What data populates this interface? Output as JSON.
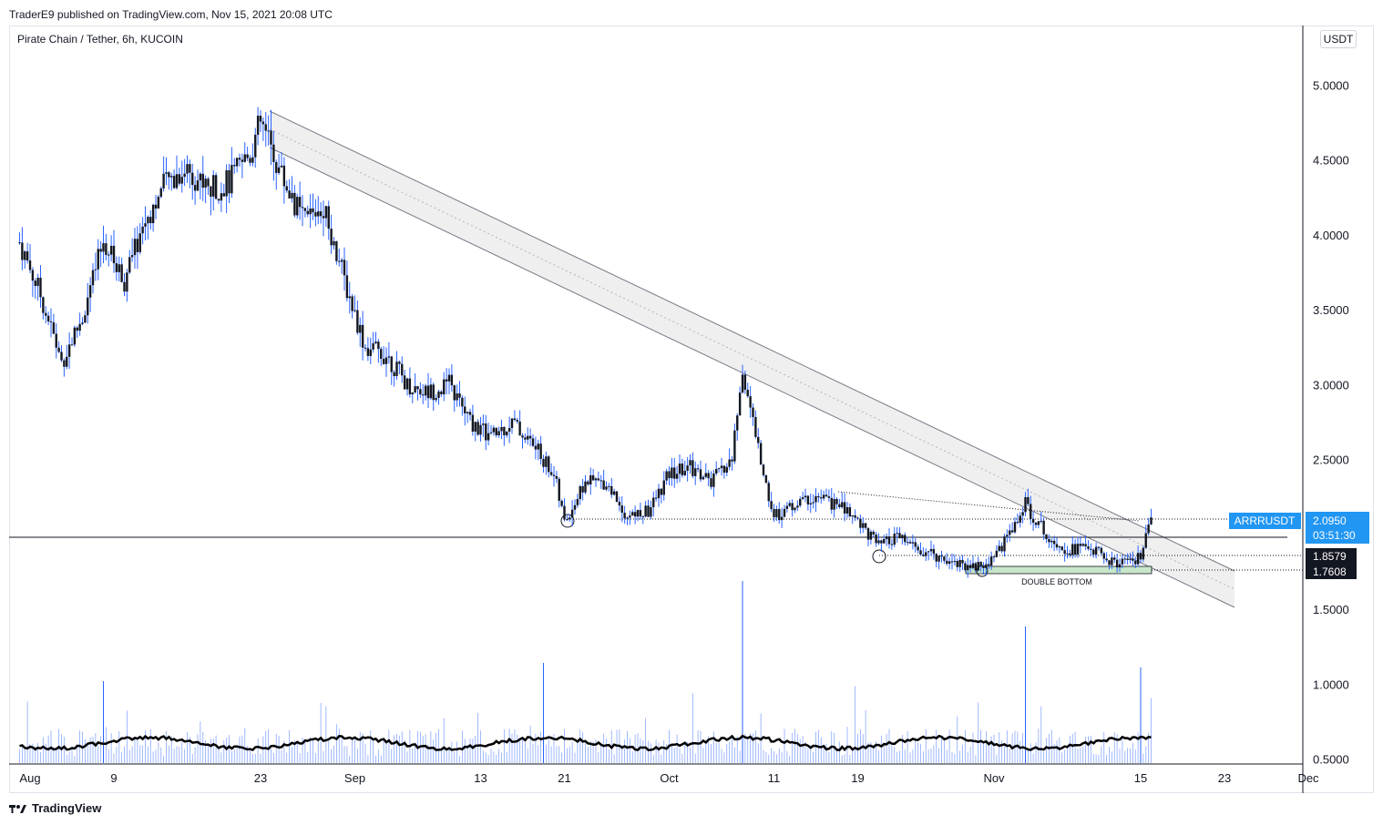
{
  "header": {
    "published": "TraderE9 published on TradingView.com, Nov 15, 2021 20:08 UTC",
    "title": "Pirate Chain / Tether, 6h, KUCOIN",
    "currency": "USDT"
  },
  "footer": {
    "brand": "TradingView",
    "logo_icon": "tradingview-logo-icon"
  },
  "colors": {
    "candle": "#131722",
    "volume": "#2962ff",
    "channel_fill": "#efefef",
    "price_label": "#2196f3",
    "level_label": "#131722",
    "double_bottom_zone": "#c8e6c9"
  },
  "symbol_label": "ARRRUSDT",
  "last_price": "2.0950",
  "countdown": "03:51:30",
  "level_labels": [
    "1.8579",
    "1.7608"
  ],
  "annotation": "DOUBLE BOTTOM",
  "chart_data": {
    "type": "line",
    "y_axis": {
      "ticks": [
        "5.0000",
        "4.5000",
        "4.0000",
        "3.5000",
        "3.0000",
        "2.5000",
        "1.5000",
        "1.0000",
        "0.5000"
      ],
      "ylim": [
        0.5,
        5.0
      ]
    },
    "x_axis": {
      "labels": [
        "Aug",
        "9",
        "23",
        "Sep",
        "13",
        "21",
        "Oct",
        "11",
        "19",
        "Nov",
        "15",
        "23",
        "Dec"
      ]
    },
    "series": [
      {
        "values": [
          [
            "Jul 31",
            3.95
          ],
          [
            "Aug 2",
            3.6
          ],
          [
            "Aug 4",
            3.15
          ],
          [
            "Aug 6",
            3.45
          ],
          [
            "Aug 8",
            3.95
          ],
          [
            "Aug 10",
            3.7
          ],
          [
            "Aug 12",
            4.1
          ],
          [
            "Aug 14",
            4.35
          ],
          [
            "Aug 16",
            4.45
          ],
          [
            "Aug 18",
            4.3
          ],
          [
            "Aug 20",
            4.35
          ],
          [
            "Aug 22",
            4.55
          ],
          [
            "Aug 23",
            4.75
          ],
          [
            "Aug 25",
            4.4
          ],
          [
            "Aug 27",
            4.1
          ],
          [
            "Aug 29",
            4.2
          ],
          [
            "Aug 31",
            3.7
          ],
          [
            "Sep 2",
            3.25
          ],
          [
            "Sep 4",
            3.2
          ],
          [
            "Sep 6",
            3.0
          ],
          [
            "Sep 8",
            2.95
          ],
          [
            "Sep 10",
            3.0
          ],
          [
            "Sep 12",
            2.75
          ],
          [
            "Sep 14",
            2.65
          ],
          [
            "Sep 16",
            2.75
          ],
          [
            "Sep 18",
            2.6
          ],
          [
            "Sep 20",
            2.4
          ],
          [
            "Sep 21",
            2.08
          ],
          [
            "Sep 23",
            2.35
          ],
          [
            "Sep 25",
            2.35
          ],
          [
            "Sep 27",
            2.12
          ],
          [
            "Sep 29",
            2.15
          ],
          [
            "Oct 1",
            2.4
          ],
          [
            "Oct 3",
            2.45
          ],
          [
            "Oct 5",
            2.35
          ],
          [
            "Oct 7",
            2.5
          ],
          [
            "Oct 8",
            3.1
          ],
          [
            "Oct 10",
            2.4
          ],
          [
            "Oct 11",
            2.12
          ],
          [
            "Oct 13",
            2.2
          ],
          [
            "Oct 15",
            2.25
          ],
          [
            "Oct 17",
            2.2
          ],
          [
            "Oct 19",
            2.1
          ],
          [
            "Oct 21",
            1.92
          ],
          [
            "Oct 23",
            1.98
          ],
          [
            "Oct 25",
            1.88
          ],
          [
            "Oct 27",
            1.85
          ],
          [
            "Oct 29",
            1.8
          ],
          [
            "Oct 31",
            1.78
          ],
          [
            "Nov 2",
            1.95
          ],
          [
            "Nov 4",
            2.2
          ],
          [
            "Nov 6",
            2.0
          ],
          [
            "Nov 8",
            1.9
          ],
          [
            "Nov 10",
            1.92
          ],
          [
            "Nov 12",
            1.82
          ],
          [
            "Nov 14",
            1.8
          ],
          [
            "Nov 15",
            1.85
          ],
          [
            "Nov 16",
            2.095
          ]
        ]
      },
      {
        "name": "Volume"
      }
    ],
    "grid": false,
    "legend": "none"
  }
}
